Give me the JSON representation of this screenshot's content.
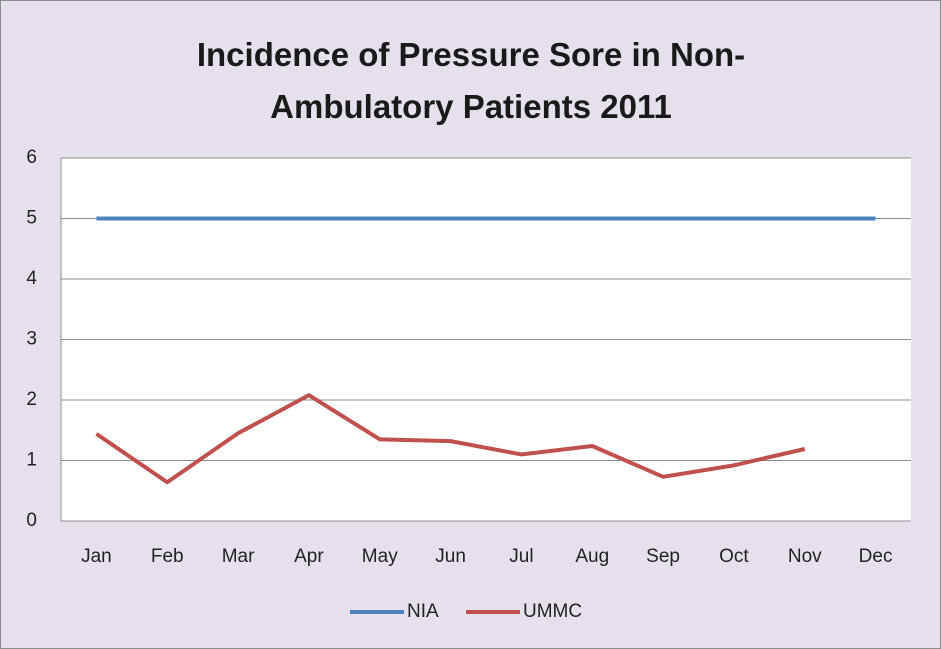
{
  "chart_data": {
    "type": "line",
    "title": "Incidence of Pressure Sore in Non-Ambulatory Patients 2011",
    "categories": [
      "Jan",
      "Feb",
      "Mar",
      "Apr",
      "May",
      "Jun",
      "Jul",
      "Aug",
      "Sep",
      "Oct",
      "Nov",
      "Dec"
    ],
    "series": [
      {
        "name": "NIA",
        "color": "#4f81bd",
        "values": [
          5,
          5,
          5,
          5,
          5,
          5,
          5,
          5,
          5,
          5,
          5,
          5
        ]
      },
      {
        "name": "UMMC",
        "color": "#c0504d",
        "values": [
          1.44,
          0.64,
          1.45,
          2.08,
          1.35,
          1.32,
          1.1,
          1.24,
          0.73,
          0.92,
          1.19,
          null
        ]
      }
    ],
    "ylim": [
      0,
      6
    ],
    "yticks": [
      0,
      1,
      2,
      3,
      4,
      5,
      6
    ],
    "grid": true,
    "legend": "bottom"
  }
}
